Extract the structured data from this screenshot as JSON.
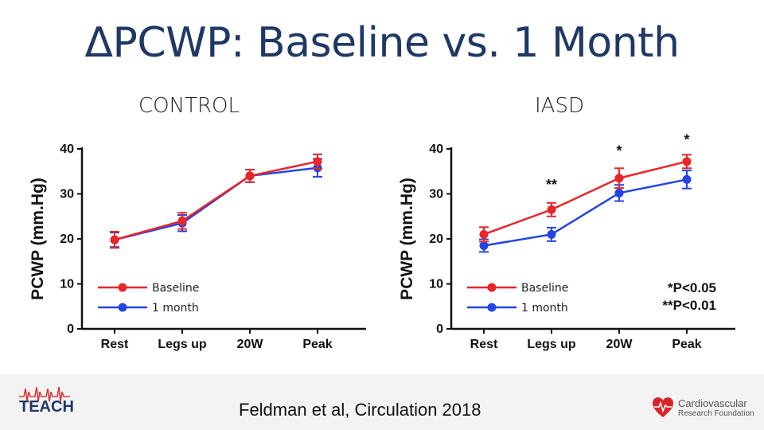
{
  "slide": {
    "title": "ΔPCWP: Baseline vs. 1 Month",
    "left_label": "CONTROL",
    "right_label": "IASD",
    "citation": "Feldman et al, Circulation 2018",
    "logo_left": "TEACH",
    "logo_right_line1": "Cardiovascular",
    "logo_right_line2": "Research Foundation"
  },
  "colors": {
    "baseline": "#e8262a",
    "one_month": "#2444e3",
    "title": "#1f3864"
  },
  "chart_data": [
    {
      "type": "line",
      "title": "CONTROL",
      "xlabel": "",
      "ylabel": "PCWP (mm.Hg)",
      "categories": [
        "Rest",
        "Legs up",
        "20W",
        "Peak"
      ],
      "ylim": [
        0,
        40
      ],
      "yticks": [
        "0",
        "10",
        "20",
        "30",
        "40"
      ],
      "legend_position": "bottom-left",
      "series": [
        {
          "name": "Baseline",
          "values": [
            19.8,
            24.0,
            34.0,
            37.2
          ],
          "errors": [
            1.8,
            1.8,
            1.4,
            1.6
          ],
          "color": "#e8262a"
        },
        {
          "name": "1 month",
          "values": [
            19.8,
            23.5,
            34.0,
            35.8
          ],
          "errors": [
            1.6,
            1.8,
            1.4,
            2.0
          ],
          "color": "#2444e3"
        }
      ],
      "annotations": []
    },
    {
      "type": "line",
      "title": "IASD",
      "xlabel": "",
      "ylabel": "PCWP (mm.Hg)",
      "categories": [
        "Rest",
        "Legs up",
        "20W",
        "Peak"
      ],
      "ylim": [
        0,
        40
      ],
      "yticks": [
        "0",
        "10",
        "20",
        "30",
        "40"
      ],
      "legend_position": "bottom-left",
      "series": [
        {
          "name": "Baseline",
          "values": [
            21.0,
            26.5,
            33.5,
            37.2
          ],
          "errors": [
            1.6,
            1.5,
            2.2,
            1.5
          ],
          "color": "#e8262a"
        },
        {
          "name": "1 month",
          "values": [
            18.5,
            21.0,
            30.2,
            33.2
          ],
          "errors": [
            1.4,
            1.5,
            1.8,
            2.0
          ],
          "color": "#2444e3"
        }
      ],
      "annotations": [
        {
          "text": "**",
          "category": "Legs up",
          "y": 31.0
        },
        {
          "text": "*",
          "category": "20W",
          "y": 38.5
        },
        {
          "text": "*",
          "category": "Peak",
          "y": 41.0
        }
      ],
      "pvalue_note": [
        "*P<0.05",
        "**P<0.01"
      ]
    }
  ]
}
